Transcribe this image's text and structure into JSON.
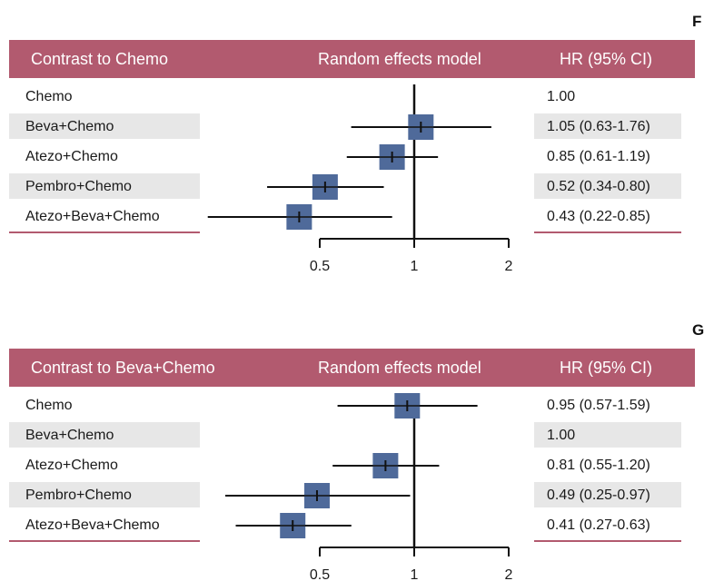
{
  "chart_data": [
    {
      "type": "forest",
      "panel_letter": "F",
      "header": {
        "contrast": "Contrast to Chemo",
        "model": "Random effects model",
        "hr": "HR (95% CI)"
      },
      "scale": "log",
      "reference_line": 1,
      "xlim": [
        0.4,
        2
      ],
      "x_ticks": [
        0.5,
        1,
        2
      ],
      "x_tick_labels": [
        "0.5",
        "1",
        "2"
      ],
      "marker_color": "#4f6a9a",
      "accent_color": "#b25a6f",
      "rows": [
        {
          "label": "Chemo",
          "hr_text": "1.00",
          "hr": null,
          "lo": null,
          "hi": null
        },
        {
          "label": "Beva+Chemo",
          "hr_text": "1.05 (0.63-1.76)",
          "hr": 1.05,
          "lo": 0.63,
          "hi": 1.76
        },
        {
          "label": "Atezo+Chemo",
          "hr_text": "0.85 (0.61-1.19)",
          "hr": 0.85,
          "lo": 0.61,
          "hi": 1.19
        },
        {
          "label": "Pembro+Chemo",
          "hr_text": "0.52 (0.34-0.80)",
          "hr": 0.52,
          "lo": 0.34,
          "hi": 0.8
        },
        {
          "label": "Atezo+Beva+Chemo",
          "hr_text": "0.43 (0.22-0.85)",
          "hr": 0.43,
          "lo": 0.22,
          "hi": 0.85
        }
      ]
    },
    {
      "type": "forest",
      "panel_letter": "G",
      "header": {
        "contrast": "Contrast to Beva+Chemo",
        "model": "Random effects model",
        "hr": "HR (95% CI)"
      },
      "scale": "log",
      "reference_line": 1,
      "xlim": [
        0.4,
        2
      ],
      "x_ticks": [
        0.5,
        1,
        2
      ],
      "x_tick_labels": [
        "0.5",
        "1",
        "2"
      ],
      "marker_color": "#4f6a9a",
      "accent_color": "#b25a6f",
      "rows": [
        {
          "label": "Chemo",
          "hr_text": "0.95 (0.57-1.59)",
          "hr": 0.95,
          "lo": 0.57,
          "hi": 1.59
        },
        {
          "label": "Beva+Chemo",
          "hr_text": "1.00",
          "hr": null,
          "lo": null,
          "hi": null
        },
        {
          "label": "Atezo+Chemo",
          "hr_text": "0.81 (0.55-1.20)",
          "hr": 0.81,
          "lo": 0.55,
          "hi": 1.2
        },
        {
          "label": "Pembro+Chemo",
          "hr_text": "0.49 (0.25-0.97)",
          "hr": 0.49,
          "lo": 0.25,
          "hi": 0.97
        },
        {
          "label": "Atezo+Beva+Chemo",
          "hr_text": "0.41 (0.27-0.63)",
          "hr": 0.41,
          "lo": 0.27,
          "hi": 0.63
        }
      ]
    }
  ]
}
